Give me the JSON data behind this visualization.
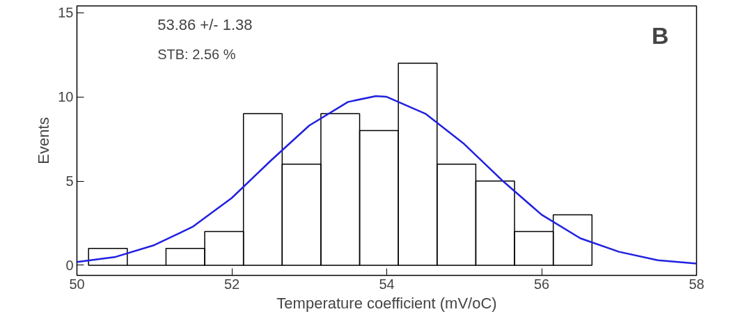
{
  "chart_data": [
    {
      "type": "histogram",
      "xlabel": "Temperature coefficient (mV/oC)",
      "ylabel": "Events",
      "bins": [
        50.15,
        50.65,
        51.15,
        51.65,
        52.15,
        52.65,
        53.15,
        53.65,
        54.15,
        54.65,
        55.15,
        55.65,
        56.15,
        56.65
      ],
      "values": [
        1,
        0,
        1,
        2,
        9,
        6,
        9,
        8,
        12,
        6,
        5,
        2,
        3
      ],
      "color": "#000000",
      "series": [
        {
          "type": "line",
          "color": "#2020e0",
          "x": [
            50,
            50.5,
            51,
            51.5,
            52,
            52.5,
            53,
            53.5,
            53.86,
            54,
            54.5,
            55,
            55.5,
            56,
            56.5,
            57,
            57.5,
            58
          ],
          "values": [
            0.2,
            0.5,
            1.2,
            2.3,
            4.0,
            6.2,
            8.3,
            9.7,
            10.05,
            10.0,
            9.0,
            7.2,
            5.0,
            3.0,
            1.6,
            0.8,
            0.3,
            0.1
          ]
        }
      ],
      "xlim": [
        50,
        58
      ],
      "xticks": [
        50,
        52,
        54,
        56,
        58
      ],
      "ylim": [
        -0.6,
        15.4
      ],
      "yticks": [
        0,
        5,
        10,
        15
      ],
      "grid": false,
      "annotations": [
        "53.86 +/-   1.38",
        "STB: 2.56 %",
        "B"
      ]
    }
  ]
}
